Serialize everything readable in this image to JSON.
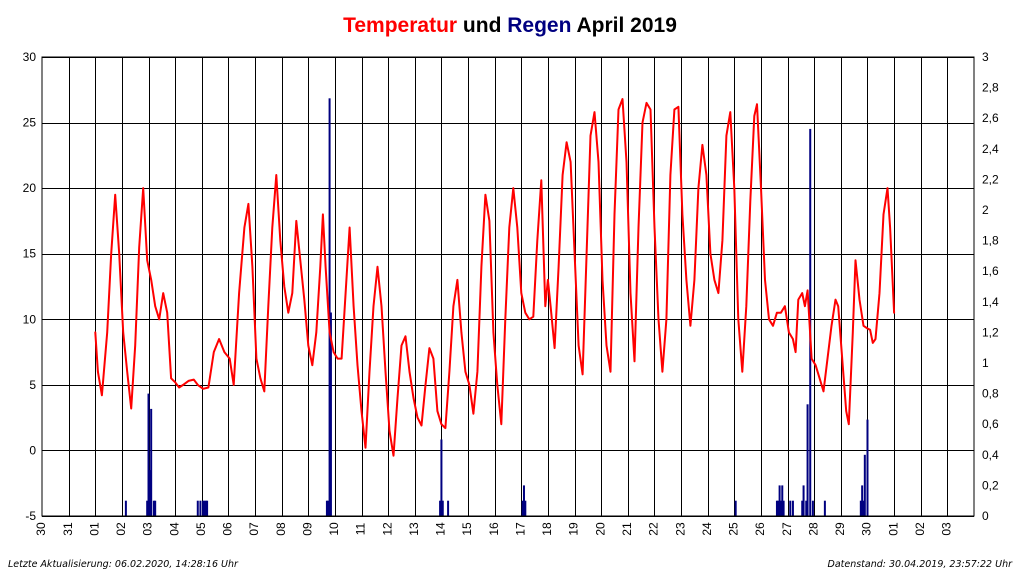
{
  "title": {
    "part1": "Temperatur",
    "part2": " und ",
    "part3": "Regen",
    "part4": " April 2019",
    "color_temp": "#ff0000",
    "color_rain": "#000080",
    "color_text": "#000000"
  },
  "footer": {
    "left": "Letzte Aktualisierung: 06.02.2020, 14:28:16 Uhr",
    "right": "Datenstand: 30.04.2019, 23:57:22 Uhr"
  },
  "chart_data": {
    "type": "line",
    "x_tick_labels": [
      "30",
      "31",
      "01",
      "02",
      "03",
      "04",
      "05",
      "06",
      "07",
      "08",
      "09",
      "10",
      "11",
      "12",
      "13",
      "14",
      "15",
      "16",
      "17",
      "18",
      "19",
      "20",
      "21",
      "22",
      "23",
      "24",
      "25",
      "26",
      "27",
      "28",
      "29",
      "30",
      "01",
      "02",
      "03"
    ],
    "y_left": {
      "min": -5,
      "max": 30,
      "ticks": [
        -5,
        0,
        5,
        10,
        15,
        20,
        25,
        30
      ]
    },
    "y_right": {
      "min": 0,
      "max": 3,
      "ticks": [
        "0",
        "0,2",
        "0,4",
        "0,6",
        "0,8",
        "1",
        "1,2",
        "1,4",
        "1,6",
        "1,8",
        "2",
        "2,2",
        "2,4",
        "2,6",
        "2,8",
        "3"
      ]
    },
    "grid": true,
    "series": [
      {
        "key": "temperature",
        "color": "#ff0000",
        "axis": "left",
        "points": [
          [
            2.0,
            9.0
          ],
          [
            2.1,
            6.0
          ],
          [
            2.25,
            4.2
          ],
          [
            2.45,
            9.0
          ],
          [
            2.6,
            15.0
          ],
          [
            2.75,
            19.5
          ],
          [
            2.9,
            15.0
          ],
          [
            3.05,
            9.0
          ],
          [
            3.2,
            6.0
          ],
          [
            3.35,
            3.2
          ],
          [
            3.5,
            8.0
          ],
          [
            3.65,
            15.5
          ],
          [
            3.8,
            20.0
          ],
          [
            3.95,
            14.5
          ],
          [
            4.1,
            13.0
          ],
          [
            4.25,
            11.0
          ],
          [
            4.4,
            10.0
          ],
          [
            4.55,
            12.0
          ],
          [
            4.7,
            10.5
          ],
          [
            4.85,
            5.5
          ],
          [
            5.0,
            5.2
          ],
          [
            5.15,
            4.8
          ],
          [
            5.3,
            5.0
          ],
          [
            5.5,
            5.3
          ],
          [
            5.7,
            5.4
          ],
          [
            5.85,
            5.0
          ],
          [
            6.05,
            4.7
          ],
          [
            6.25,
            4.8
          ],
          [
            6.45,
            7.5
          ],
          [
            6.65,
            8.5
          ],
          [
            6.85,
            7.5
          ],
          [
            7.05,
            7.0
          ],
          [
            7.2,
            5.0
          ],
          [
            7.4,
            12.0
          ],
          [
            7.6,
            17.0
          ],
          [
            7.75,
            18.8
          ],
          [
            7.9,
            14.0
          ],
          [
            8.05,
            7.0
          ],
          [
            8.2,
            5.5
          ],
          [
            8.35,
            4.5
          ],
          [
            8.5,
            11.0
          ],
          [
            8.65,
            17.0
          ],
          [
            8.8,
            21.0
          ],
          [
            8.95,
            16.0
          ],
          [
            9.1,
            12.5
          ],
          [
            9.25,
            10.5
          ],
          [
            9.4,
            12.0
          ],
          [
            9.55,
            17.5
          ],
          [
            9.7,
            14.5
          ],
          [
            9.85,
            11.5
          ],
          [
            10.0,
            8.0
          ],
          [
            10.15,
            6.5
          ],
          [
            10.3,
            9.0
          ],
          [
            10.45,
            14.0
          ],
          [
            10.55,
            18.0
          ],
          [
            10.65,
            14.0
          ],
          [
            10.8,
            9.0
          ],
          [
            10.95,
            7.5
          ],
          [
            11.1,
            7.0
          ],
          [
            11.25,
            7.0
          ],
          [
            11.4,
            12.0
          ],
          [
            11.55,
            17.0
          ],
          [
            11.7,
            11.0
          ],
          [
            11.85,
            6.5
          ],
          [
            12.0,
            3.0
          ],
          [
            12.15,
            0.2
          ],
          [
            12.3,
            6.0
          ],
          [
            12.45,
            11.0
          ],
          [
            12.6,
            14.0
          ],
          [
            12.75,
            11.0
          ],
          [
            12.9,
            6.0
          ],
          [
            13.05,
            1.5
          ],
          [
            13.2,
            -0.4
          ],
          [
            13.35,
            4.0
          ],
          [
            13.5,
            8.0
          ],
          [
            13.65,
            8.7
          ],
          [
            13.8,
            6.0
          ],
          [
            13.95,
            4.0
          ],
          [
            14.1,
            2.5
          ],
          [
            14.25,
            1.9
          ],
          [
            14.4,
            5.0
          ],
          [
            14.55,
            7.8
          ],
          [
            14.7,
            7.0
          ],
          [
            14.85,
            3.0
          ],
          [
            15.0,
            2.0
          ],
          [
            15.15,
            1.7
          ],
          [
            15.3,
            6.0
          ],
          [
            15.45,
            11.0
          ],
          [
            15.6,
            13.0
          ],
          [
            15.75,
            9.0
          ],
          [
            15.9,
            6.0
          ],
          [
            16.05,
            5.0
          ],
          [
            16.2,
            2.8
          ],
          [
            16.35,
            6.0
          ],
          [
            16.5,
            14.0
          ],
          [
            16.65,
            19.5
          ],
          [
            16.8,
            17.5
          ],
          [
            16.95,
            9.0
          ],
          [
            17.1,
            5.0
          ],
          [
            17.25,
            2.0
          ],
          [
            17.4,
            10.0
          ],
          [
            17.55,
            17.0
          ],
          [
            17.7,
            20.0
          ],
          [
            17.85,
            17.0
          ],
          [
            18.0,
            12.0
          ],
          [
            18.15,
            10.5
          ],
          [
            18.3,
            10.0
          ],
          [
            18.45,
            10.2
          ],
          [
            18.6,
            16.0
          ],
          [
            18.75,
            20.6
          ],
          [
            18.9,
            11.0
          ],
          [
            19.0,
            13.0
          ],
          [
            19.1,
            11.0
          ],
          [
            19.25,
            7.8
          ],
          [
            19.4,
            14.0
          ],
          [
            19.55,
            21.0
          ],
          [
            19.7,
            23.5
          ],
          [
            19.85,
            22.0
          ],
          [
            20.0,
            15.0
          ],
          [
            20.15,
            8.0
          ],
          [
            20.3,
            5.8
          ],
          [
            20.45,
            15.0
          ],
          [
            20.6,
            24.0
          ],
          [
            20.75,
            25.8
          ],
          [
            20.9,
            22.0
          ],
          [
            21.05,
            13.0
          ],
          [
            21.2,
            8.0
          ],
          [
            21.35,
            6.0
          ],
          [
            21.5,
            18.0
          ],
          [
            21.65,
            26.0
          ],
          [
            21.8,
            26.8
          ],
          [
            21.95,
            22.0
          ],
          [
            22.1,
            12.0
          ],
          [
            22.25,
            6.8
          ],
          [
            22.4,
            17.0
          ],
          [
            22.55,
            25.0
          ],
          [
            22.7,
            26.5
          ],
          [
            22.85,
            26.0
          ],
          [
            23.0,
            17.0
          ],
          [
            23.15,
            10.0
          ],
          [
            23.3,
            6.0
          ],
          [
            23.45,
            10.0
          ],
          [
            23.6,
            21.0
          ],
          [
            23.75,
            26.0
          ],
          [
            23.9,
            26.2
          ],
          [
            24.05,
            18.0
          ],
          [
            24.2,
            13.0
          ],
          [
            24.35,
            9.5
          ],
          [
            24.5,
            13.0
          ],
          [
            24.65,
            20.0
          ],
          [
            24.8,
            23.3
          ],
          [
            24.95,
            21.0
          ],
          [
            25.1,
            15.0
          ],
          [
            25.25,
            13.0
          ],
          [
            25.4,
            12.0
          ],
          [
            25.55,
            16.0
          ],
          [
            25.7,
            24.0
          ],
          [
            25.85,
            25.8
          ],
          [
            26.0,
            20.0
          ],
          [
            26.15,
            10.0
          ],
          [
            26.3,
            6.0
          ],
          [
            26.45,
            11.0
          ],
          [
            26.6,
            19.0
          ],
          [
            26.75,
            25.5
          ],
          [
            26.85,
            26.4
          ],
          [
            27.0,
            20.0
          ],
          [
            27.15,
            13.0
          ],
          [
            27.3,
            10.0
          ],
          [
            27.45,
            9.5
          ],
          [
            27.6,
            10.5
          ],
          [
            27.75,
            10.5
          ],
          [
            27.9,
            11.0
          ],
          [
            28.05,
            9.0
          ],
          [
            28.2,
            8.5
          ],
          [
            28.3,
            7.5
          ],
          [
            28.4,
            11.5
          ],
          [
            28.55,
            12.0
          ],
          [
            28.65,
            11.0
          ],
          [
            28.75,
            12.2
          ],
          [
            28.9,
            7.0
          ],
          [
            29.05,
            6.5
          ],
          [
            29.2,
            5.5
          ],
          [
            29.35,
            4.5
          ],
          [
            29.5,
            7.0
          ],
          [
            29.65,
            9.5
          ],
          [
            29.8,
            11.5
          ],
          [
            29.9,
            11.0
          ],
          [
            30.05,
            7.0
          ],
          [
            30.2,
            3.0
          ],
          [
            30.3,
            2.0
          ],
          [
            30.45,
            9.0
          ],
          [
            30.55,
            14.5
          ],
          [
            30.7,
            11.5
          ],
          [
            30.85,
            9.5
          ],
          [
            31.0,
            9.3
          ],
          [
            31.1,
            9.2
          ],
          [
            31.2,
            8.2
          ],
          [
            31.3,
            8.5
          ],
          [
            31.45,
            12.0
          ],
          [
            31.6,
            18.0
          ],
          [
            31.75,
            20.0
          ],
          [
            31.85,
            17.0
          ],
          [
            32.0,
            10.5
          ]
        ]
      },
      {
        "key": "rain",
        "color": "#000080",
        "axis": "right",
        "bars": [
          [
            3.15,
            0.1
          ],
          [
            3.95,
            0.1
          ],
          [
            4.0,
            0.8
          ],
          [
            4.05,
            0.3
          ],
          [
            4.1,
            0.7
          ],
          [
            4.2,
            0.1
          ],
          [
            4.25,
            0.1
          ],
          [
            5.85,
            0.1
          ],
          [
            5.95,
            0.1
          ],
          [
            6.05,
            0.1
          ],
          [
            6.1,
            0.1
          ],
          [
            6.15,
            0.1
          ],
          [
            6.2,
            0.1
          ],
          [
            10.7,
            0.1
          ],
          [
            10.75,
            0.1
          ],
          [
            10.85,
            1.33
          ],
          [
            10.8,
            2.73
          ],
          [
            14.95,
            0.1
          ],
          [
            15.0,
            0.5
          ],
          [
            15.05,
            0.1
          ],
          [
            15.25,
            0.1
          ],
          [
            18.05,
            0.1
          ],
          [
            18.1,
            0.2
          ],
          [
            18.15,
            0.1
          ],
          [
            26.05,
            0.1
          ],
          [
            27.6,
            0.1
          ],
          [
            27.65,
            0.1
          ],
          [
            27.7,
            0.2
          ],
          [
            27.75,
            0.1
          ],
          [
            27.8,
            0.2
          ],
          [
            27.85,
            0.1
          ],
          [
            28.1,
            0.1
          ],
          [
            28.2,
            0.1
          ],
          [
            28.55,
            0.1
          ],
          [
            28.6,
            0.2
          ],
          [
            28.7,
            0.1
          ],
          [
            28.75,
            0.73
          ],
          [
            28.85,
            2.53
          ],
          [
            28.95,
            0.1
          ],
          [
            29.4,
            0.1
          ],
          [
            30.75,
            0.1
          ],
          [
            30.8,
            0.2
          ],
          [
            30.85,
            0.1
          ],
          [
            30.9,
            0.4
          ],
          [
            31.0,
            0.63
          ]
        ]
      }
    ]
  }
}
